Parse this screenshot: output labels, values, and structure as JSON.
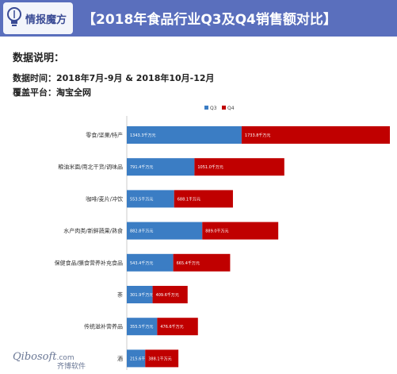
{
  "header": {
    "logo_text": "情报魔方",
    "title": "【2018年食品行业Q3及Q4销售额对比】"
  },
  "info": {
    "heading": "数据说明：",
    "time_line": "数据时间：2018年7月-9月 & 2018年10月-12月",
    "platform_line": "覆盖平台：淘宝全网"
  },
  "chart_data": {
    "type": "bar",
    "orientation": "horizontal",
    "stacked": true,
    "legend_position": "top-right",
    "unit": "千万元",
    "categories": [
      "零食/坚果/特产",
      "粮油米面/南北干货/调味品",
      "咖啡/麦片/冲饮",
      "水产肉类/新鲜蔬果/熟食",
      "保健食品/膳食营养补充食品",
      "茶",
      "传统滋补营养品",
      "酒"
    ],
    "series": [
      {
        "name": "Q3",
        "color": "#3b7dc4",
        "values": [
          1343.3,
          791.4,
          553.5,
          882.8,
          543.4,
          301.9,
          355.5,
          215.6
        ],
        "labels": [
          "1343.3千万元",
          "791.4千万元",
          "553.5千万元",
          "882.8千万元",
          "543.4千万元",
          "301.9千万元",
          "355.5千万元",
          "215.6千万元"
        ]
      },
      {
        "name": "Q4",
        "color": "#c00000",
        "values": [
          1733.8,
          1051.0,
          688.1,
          889.0,
          665.4,
          409.6,
          476.6,
          388.1
        ],
        "labels": [
          "1733.8千万元",
          "1051.0千万元",
          "688.1千万元",
          "889.0千万元",
          "665.4千万元",
          "409.6千万元",
          "476.6千万元",
          "388.1千万元"
        ]
      }
    ]
  },
  "watermark": {
    "text_en": "Qibosoft",
    "text_com": ".com",
    "text_cn": "齐博软件"
  }
}
